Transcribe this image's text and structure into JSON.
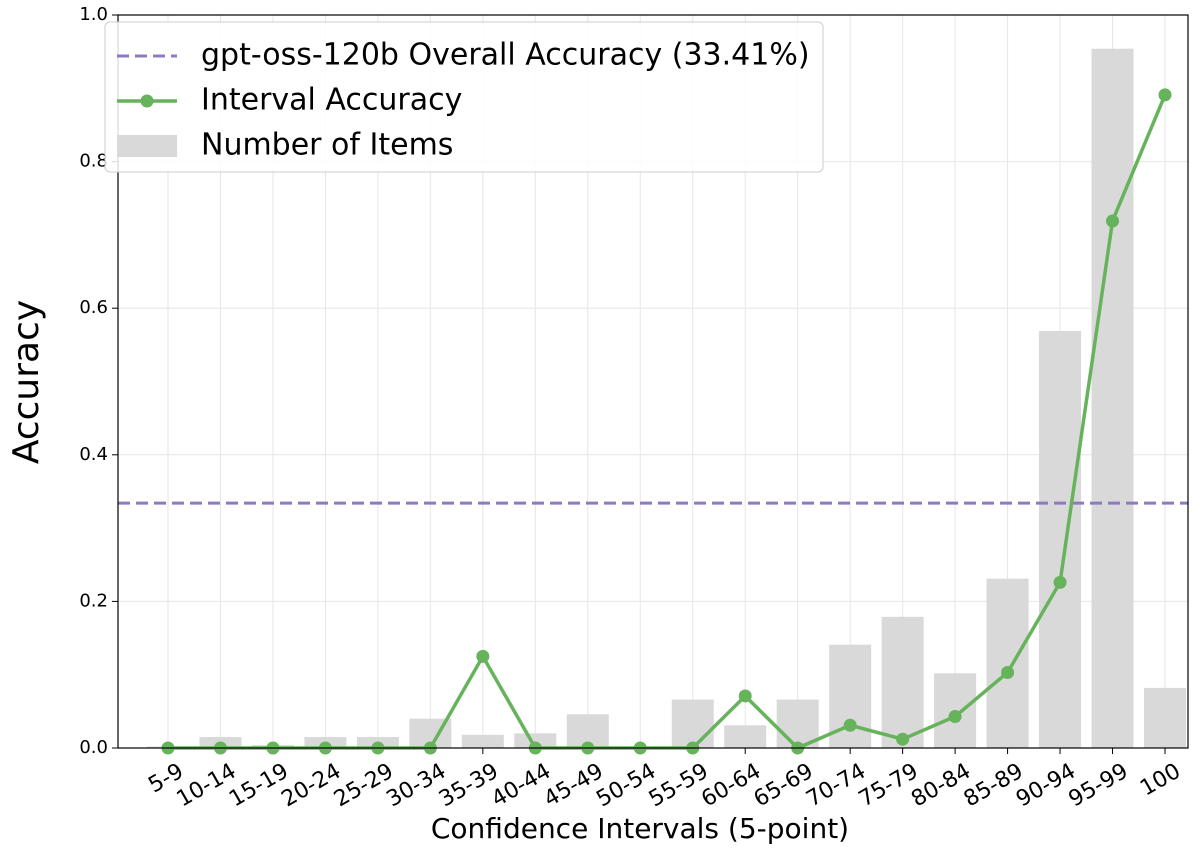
{
  "chart_data": {
    "type": "bar_line",
    "xlabel": "Confidence Intervals (5-point)",
    "ylabel": "Accuracy",
    "categories": [
      "5-9",
      "10-14",
      "15-19",
      "20-24",
      "25-29",
      "30-34",
      "35-39",
      "40-44",
      "45-49",
      "50-54",
      "55-59",
      "60-64",
      "65-69",
      "70-74",
      "75-79",
      "80-84",
      "85-89",
      "90-94",
      "95-99",
      "100"
    ],
    "series": [
      {
        "name": "Number of Items",
        "type": "bar",
        "color": "#d9d9d9",
        "values": [
          0.002,
          0.015,
          0.004,
          0.015,
          0.015,
          0.04,
          0.018,
          0.02,
          0.046,
          0,
          0.066,
          0.031,
          0.066,
          0.141,
          0.179,
          0.102,
          0.231,
          0.569,
          0.954,
          0.082
        ]
      },
      {
        "name": "Interval Accuracy",
        "type": "line",
        "color": "#66b35c",
        "values": [
          0,
          0,
          0,
          0,
          0,
          0,
          0.125,
          0,
          0,
          0,
          0,
          0.071,
          0,
          0.031,
          0.012,
          0.043,
          0.103,
          0.226,
          0.719,
          0.891
        ]
      }
    ],
    "hline": {
      "name": "gpt-oss-120b Overall Accuracy (33.41%)",
      "value": 0.3341,
      "color": "#9079c0"
    },
    "ylim": [
      0,
      1
    ],
    "yticks": [
      {
        "value": 0,
        "label": "0.0"
      },
      {
        "value": 0.2,
        "label": "0.2"
      },
      {
        "value": 0.4,
        "label": "0.4"
      },
      {
        "value": 0.6,
        "label": "0.6"
      },
      {
        "value": 0.8,
        "label": "0.8"
      },
      {
        "value": 1,
        "label": "1.0"
      }
    ],
    "grid": true,
    "legend": "upper left"
  }
}
